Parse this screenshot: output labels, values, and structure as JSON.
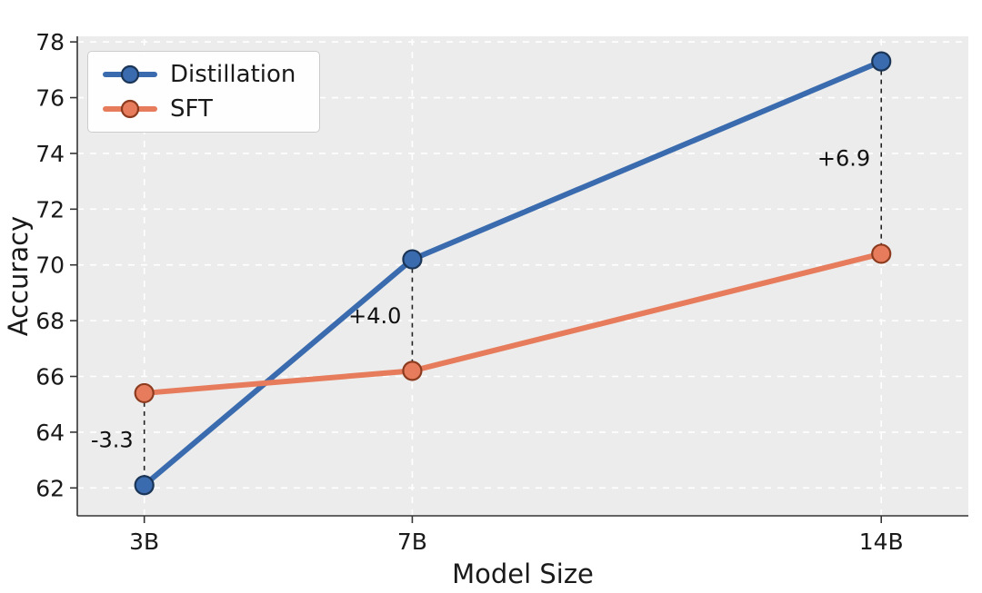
{
  "chart_data": {
    "type": "line",
    "title": "",
    "xlabel": "Model Size",
    "ylabel": "Accuracy",
    "categories": [
      "3B",
      "7B",
      "14B"
    ],
    "x_values": [
      3,
      7,
      14
    ],
    "xlim": [
      2.0,
      15.3
    ],
    "ylim": [
      61.0,
      78.2
    ],
    "yticks": [
      62,
      64,
      66,
      68,
      70,
      72,
      74,
      76,
      78
    ],
    "grid": true,
    "legend_position": "upper left",
    "plot_background": "#ECECEC",
    "grid_color": "#FFFFFF",
    "axis_color": "#333333",
    "series": [
      {
        "name": "Distillation",
        "values": [
          62.1,
          70.2,
          77.3
        ],
        "color": "#3A6BAE",
        "marker_edge": "#1B3557"
      },
      {
        "name": "SFT",
        "values": [
          65.4,
          66.2,
          70.4
        ],
        "color": "#E67C5C",
        "marker_edge": "#8C3B1F"
      }
    ],
    "annotations": [
      {
        "category": "3B",
        "text": "-3.3"
      },
      {
        "category": "7B",
        "text": "+4.0"
      },
      {
        "category": "14B",
        "text": "+6.9"
      }
    ]
  }
}
